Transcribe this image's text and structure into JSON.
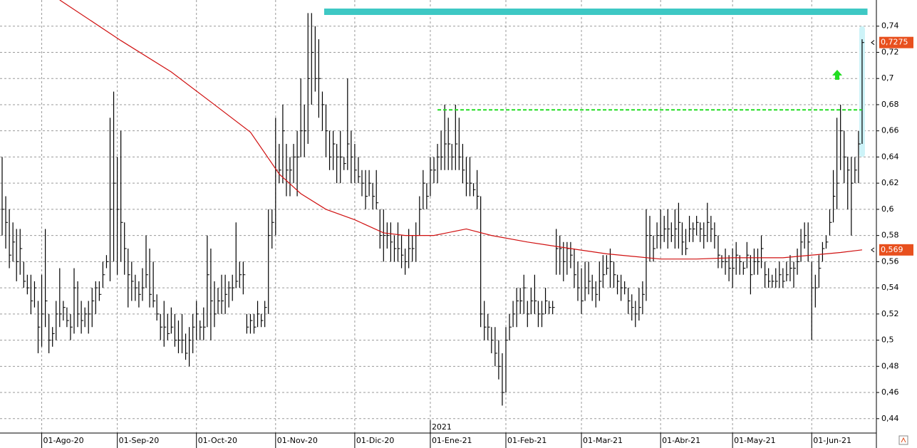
{
  "chart_data": {
    "type": "ohlc",
    "color": "#000000",
    "year_label": "2021",
    "categories": [
      null,
      null,
      null,
      null,
      null,
      null,
      null,
      null,
      null,
      null,
      null,
      "01-Ago-20",
      null,
      null,
      null,
      null,
      null,
      null,
      null,
      null,
      null,
      null,
      null,
      null,
      null,
      null,
      null,
      null,
      null,
      null,
      null,
      null,
      "01-Sep-20",
      null,
      null,
      null,
      null,
      null,
      null,
      null,
      null,
      null,
      null,
      null,
      null,
      null,
      null,
      null,
      null,
      null,
      null,
      null,
      null,
      null,
      "01-Oct-20",
      null,
      null,
      null,
      null,
      null,
      null,
      null,
      null,
      null,
      null,
      null,
      null,
      null,
      null,
      null,
      null,
      null,
      null,
      null,
      null,
      null,
      "01-Nov-20",
      null,
      null,
      null,
      null,
      null,
      null,
      null,
      null,
      null,
      null,
      null,
      null,
      null,
      null,
      null,
      null,
      null,
      null,
      null,
      null,
      null,
      "01-Dic-20",
      null,
      null,
      null,
      null,
      null,
      null,
      null,
      null,
      null,
      null,
      null,
      null,
      null,
      null,
      null,
      null,
      null,
      null,
      null,
      null,
      "01-Ene-21",
      null,
      null,
      null,
      null,
      null,
      null,
      null,
      null,
      null,
      null,
      null,
      null,
      null,
      null,
      null,
      null,
      null,
      null,
      null,
      null,
      "01-Feb-21",
      null,
      null,
      null,
      null,
      null,
      null,
      null,
      null,
      null,
      null,
      null,
      null,
      null,
      null,
      null,
      null,
      null,
      null,
      null,
      null,
      "01-Mar-21",
      null,
      null,
      null,
      null,
      null,
      null,
      null,
      null,
      null,
      null,
      null,
      null,
      null,
      null,
      null,
      null,
      null,
      null,
      null,
      null,
      null,
      "01-Abr-21",
      null,
      null,
      null,
      null,
      null,
      null,
      null,
      null,
      null,
      null,
      null,
      null,
      null,
      null,
      null,
      null,
      null,
      null,
      null,
      "01-May-21",
      null,
      null,
      null,
      null,
      null,
      null,
      null,
      null,
      null,
      null,
      null,
      null,
      null,
      null,
      null,
      null,
      null,
      null,
      null,
      null,
      null,
      "01-Jun-21",
      null,
      null,
      null,
      null,
      null,
      null,
      null,
      null,
      null,
      null,
      null,
      null,
      null,
      null
    ],
    "high": [
      0.64,
      0.61,
      0.6,
      0.59,
      0.585,
      0.585,
      0.56,
      0.55,
      0.55,
      0.545,
      0.53,
      0.55,
      0.585,
      0.52,
      0.51,
      0.53,
      0.555,
      0.53,
      0.525,
      0.52,
      0.555,
      0.545,
      0.53,
      0.525,
      0.53,
      0.54,
      0.545,
      0.545,
      0.56,
      0.565,
      0.67,
      0.69,
      0.64,
      0.66,
      0.59,
      0.57,
      0.56,
      0.55,
      0.545,
      0.555,
      0.58,
      0.57,
      0.56,
      0.535,
      0.52,
      0.53,
      0.52,
      0.525,
      0.52,
      0.515,
      0.52,
      0.505,
      0.51,
      0.52,
      0.53,
      0.515,
      0.525,
      0.58,
      0.57,
      0.545,
      0.54,
      0.55,
      0.55,
      0.545,
      0.55,
      0.59,
      0.56,
      0.56,
      0.52,
      0.52,
      0.52,
      0.53,
      0.52,
      0.53,
      0.6,
      0.6,
      0.67,
      0.65,
      0.68,
      0.65,
      0.64,
      0.65,
      0.66,
      0.7,
      0.68,
      0.75,
      0.75,
      0.74,
      0.73,
      0.69,
      0.68,
      0.66,
      0.66,
      0.65,
      0.66,
      0.64,
      0.7,
      0.66,
      0.65,
      0.64,
      0.63,
      0.63,
      0.63,
      0.62,
      0.63,
      0.6,
      0.6,
      0.59,
      0.59,
      0.58,
      0.59,
      0.58,
      0.57,
      0.585,
      0.58,
      0.59,
      0.61,
      0.63,
      0.62,
      0.64,
      0.64,
      0.65,
      0.66,
      0.68,
      0.67,
      0.65,
      0.68,
      0.67,
      0.65,
      0.64,
      0.64,
      0.62,
      0.63,
      0.61,
      0.53,
      0.52,
      0.51,
      0.51,
      0.5,
      0.49,
      0.51,
      0.52,
      0.53,
      0.54,
      0.54,
      0.55,
      0.53,
      0.54,
      0.55,
      0.53,
      0.53,
      0.54,
      0.53,
      0.53,
      0.585,
      0.58,
      0.575,
      0.575,
      0.575,
      0.57,
      0.56,
      0.555,
      0.56,
      0.56,
      0.55,
      0.545,
      0.56,
      0.565,
      0.565,
      0.57,
      0.56,
      0.55,
      0.55,
      0.545,
      0.54,
      0.535,
      0.53,
      0.54,
      0.545,
      0.6,
      0.595,
      0.58,
      0.59,
      0.6,
      0.595,
      0.6,
      0.59,
      0.6,
      0.605,
      0.59,
      0.585,
      0.595,
      0.59,
      0.595,
      0.59,
      0.59,
      0.605,
      0.595,
      0.59,
      0.58,
      0.565,
      0.57,
      0.565,
      0.57,
      0.575,
      0.565,
      0.56,
      0.575,
      0.565,
      0.57,
      0.57,
      0.58,
      0.56,
      0.555,
      0.55,
      0.555,
      0.56,
      0.555,
      0.56,
      0.565,
      0.56,
      0.57,
      0.585,
      0.59,
      0.59,
      0.56,
      0.55,
      0.565,
      0.575,
      0.58,
      0.6,
      0.63,
      0.67,
      0.68,
      0.66,
      0.64,
      0.64,
      0.64,
      0.66,
      0.73
    ],
    "low": [
      0.58,
      0.57,
      0.555,
      0.56,
      0.545,
      0.55,
      0.54,
      0.535,
      0.52,
      0.525,
      0.49,
      0.495,
      0.51,
      0.49,
      0.495,
      0.5,
      0.51,
      0.515,
      0.51,
      0.5,
      0.505,
      0.51,
      0.505,
      0.51,
      0.505,
      0.51,
      0.52,
      0.53,
      0.54,
      0.555,
      0.545,
      0.56,
      0.55,
      0.56,
      0.55,
      0.525,
      0.53,
      0.53,
      0.525,
      0.53,
      0.54,
      0.525,
      0.525,
      0.515,
      0.5,
      0.495,
      0.5,
      0.505,
      0.495,
      0.49,
      0.49,
      0.485,
      0.48,
      0.49,
      0.5,
      0.5,
      0.5,
      0.51,
      0.5,
      0.51,
      0.52,
      0.52,
      0.52,
      0.525,
      0.53,
      0.54,
      0.54,
      0.535,
      0.505,
      0.505,
      0.505,
      0.51,
      0.51,
      0.51,
      0.52,
      0.57,
      0.58,
      0.62,
      0.62,
      0.61,
      0.61,
      0.62,
      0.61,
      0.64,
      0.64,
      0.65,
      0.68,
      0.69,
      0.67,
      0.66,
      0.64,
      0.63,
      0.63,
      0.62,
      0.62,
      0.63,
      0.63,
      0.62,
      0.62,
      0.62,
      0.61,
      0.6,
      0.61,
      0.6,
      0.6,
      0.57,
      0.56,
      0.57,
      0.56,
      0.56,
      0.56,
      0.555,
      0.55,
      0.555,
      0.56,
      0.56,
      0.58,
      0.6,
      0.6,
      0.61,
      0.62,
      0.62,
      0.63,
      0.63,
      0.63,
      0.63,
      0.63,
      0.63,
      0.62,
      0.61,
      0.61,
      0.61,
      0.6,
      0.51,
      0.5,
      0.5,
      0.49,
      0.48,
      0.47,
      0.45,
      0.46,
      0.5,
      0.51,
      0.51,
      0.52,
      0.52,
      0.51,
      0.52,
      0.52,
      0.51,
      0.51,
      0.52,
      0.52,
      0.52,
      0.55,
      0.55,
      0.545,
      0.55,
      0.555,
      0.54,
      0.53,
      0.52,
      0.53,
      0.535,
      0.53,
      0.525,
      0.53,
      0.54,
      0.55,
      0.54,
      0.54,
      0.535,
      0.53,
      0.535,
      0.52,
      0.515,
      0.51,
      0.515,
      0.52,
      0.53,
      0.56,
      0.56,
      0.57,
      0.57,
      0.575,
      0.57,
      0.575,
      0.57,
      0.57,
      0.565,
      0.565,
      0.575,
      0.575,
      0.58,
      0.575,
      0.57,
      0.575,
      0.575,
      0.57,
      0.555,
      0.555,
      0.55,
      0.545,
      0.54,
      0.55,
      0.55,
      0.55,
      0.555,
      0.535,
      0.55,
      0.55,
      0.555,
      0.54,
      0.54,
      0.54,
      0.54,
      0.54,
      0.54,
      0.545,
      0.545,
      0.54,
      0.55,
      0.56,
      0.57,
      0.56,
      0.5,
      0.525,
      0.54,
      0.56,
      0.57,
      0.58,
      0.59,
      0.6,
      0.63,
      0.62,
      0.6,
      0.58,
      0.62,
      0.62,
      0.65
    ],
    "close": [
      0.6,
      0.59,
      0.565,
      0.575,
      0.56,
      0.57,
      0.545,
      0.54,
      0.53,
      0.54,
      0.51,
      0.52,
      0.53,
      0.5,
      0.505,
      0.52,
      0.52,
      0.525,
      0.515,
      0.51,
      0.54,
      0.52,
      0.515,
      0.52,
      0.52,
      0.53,
      0.54,
      0.535,
      0.55,
      0.56,
      0.6,
      0.62,
      0.6,
      0.59,
      0.57,
      0.55,
      0.545,
      0.54,
      0.535,
      0.54,
      0.55,
      0.535,
      0.53,
      0.52,
      0.51,
      0.51,
      0.505,
      0.51,
      0.5,
      0.5,
      0.5,
      0.49,
      0.5,
      0.51,
      0.52,
      0.51,
      0.51,
      0.55,
      0.53,
      0.52,
      0.53,
      0.53,
      0.535,
      0.54,
      0.54,
      0.545,
      0.55,
      0.55,
      0.51,
      0.515,
      0.51,
      0.52,
      0.515,
      0.525,
      0.58,
      0.59,
      0.63,
      0.63,
      0.66,
      0.63,
      0.63,
      0.64,
      0.64,
      0.66,
      0.66,
      0.7,
      0.72,
      0.7,
      0.7,
      0.68,
      0.66,
      0.64,
      0.65,
      0.64,
      0.64,
      0.635,
      0.65,
      0.64,
      0.63,
      0.625,
      0.62,
      0.61,
      0.62,
      0.61,
      0.605,
      0.58,
      0.58,
      0.58,
      0.575,
      0.57,
      0.57,
      0.565,
      0.56,
      0.57,
      0.57,
      0.58,
      0.6,
      0.62,
      0.61,
      0.63,
      0.63,
      0.64,
      0.64,
      0.65,
      0.65,
      0.64,
      0.65,
      0.64,
      0.63,
      0.62,
      0.62,
      0.615,
      0.61,
      0.52,
      0.51,
      0.51,
      0.5,
      0.49,
      0.48,
      0.46,
      0.5,
      0.51,
      0.52,
      0.53,
      0.53,
      0.54,
      0.52,
      0.53,
      0.53,
      0.52,
      0.52,
      0.53,
      0.525,
      0.525,
      0.57,
      0.57,
      0.56,
      0.57,
      0.565,
      0.55,
      0.54,
      0.53,
      0.54,
      0.545,
      0.54,
      0.535,
      0.545,
      0.55,
      0.555,
      0.56,
      0.55,
      0.545,
      0.54,
      0.54,
      0.53,
      0.525,
      0.52,
      0.525,
      0.535,
      0.58,
      0.58,
      0.57,
      0.58,
      0.58,
      0.585,
      0.585,
      0.58,
      0.585,
      0.59,
      0.575,
      0.57,
      0.585,
      0.585,
      0.59,
      0.585,
      0.58,
      0.59,
      0.585,
      0.58,
      0.565,
      0.56,
      0.56,
      0.555,
      0.555,
      0.565,
      0.56,
      0.555,
      0.565,
      0.55,
      0.56,
      0.56,
      0.57,
      0.55,
      0.545,
      0.545,
      0.545,
      0.55,
      0.545,
      0.55,
      0.555,
      0.555,
      0.56,
      0.575,
      0.58,
      0.575,
      0.54,
      0.54,
      0.555,
      0.57,
      0.575,
      0.59,
      0.61,
      0.62,
      0.66,
      0.64,
      0.63,
      0.62,
      0.63,
      0.65,
      0.7275
    ],
    "ma": {
      "color": "#d01010",
      "x": [
        16,
        33,
        47,
        59,
        69,
        77,
        83,
        90,
        98,
        106,
        112,
        120,
        129,
        136,
        146,
        158,
        168,
        183,
        193,
        203,
        217,
        233,
        239
      ],
      "values": [
        0.76,
        0.729,
        0.705,
        0.68,
        0.659,
        0.627,
        0.612,
        0.6,
        0.592,
        0.582,
        0.58,
        0.58,
        0.585,
        0.58,
        0.575,
        0.57,
        0.566,
        0.562,
        0.562,
        0.563,
        0.563,
        0.567,
        0.569
      ]
    },
    "levels": [
      {
        "value": 0.751,
        "x": [
          89.5,
          240.5
        ],
        "color": "#3ec8c4",
        "style": "solid"
      },
      {
        "value": 0.676,
        "x": [
          121,
          239
        ],
        "color": "#22dd22",
        "style": "dashed"
      }
    ],
    "projection": {
      "x": 239,
      "low": 0.64,
      "high": 0.74,
      "color": "#cdf3f8"
    },
    "price_labels": [
      {
        "value": 0.7275,
        "label": "0,7275",
        "color": "#e8501e"
      },
      {
        "value": 0.569,
        "label": "0,569",
        "color": "#e8501e"
      }
    ],
    "ylim": [
      0.429,
      0.76
    ],
    "yticks": [
      {
        "value": 0.44,
        "label": "0,44"
      },
      {
        "value": 0.46,
        "label": "0,46"
      },
      {
        "value": 0.48,
        "label": "0,48"
      },
      {
        "value": 0.5,
        "label": "0,5"
      },
      {
        "value": 0.52,
        "label": "0,52"
      },
      {
        "value": 0.54,
        "label": "0,54"
      },
      {
        "value": 0.56,
        "label": "0,56"
      },
      {
        "value": 0.58,
        "label": "0,58"
      },
      {
        "value": 0.6,
        "label": "0,6"
      },
      {
        "value": 0.62,
        "label": "0,62"
      },
      {
        "value": 0.64,
        "label": "0,64"
      },
      {
        "value": 0.66,
        "label": "0,66"
      },
      {
        "value": 0.68,
        "label": "0,68"
      },
      {
        "value": 0.7,
        "label": "0,7"
      },
      {
        "value": 0.72,
        "label": "0,72"
      },
      {
        "value": 0.74,
        "label": "0,74"
      }
    ],
    "grid": true
  }
}
